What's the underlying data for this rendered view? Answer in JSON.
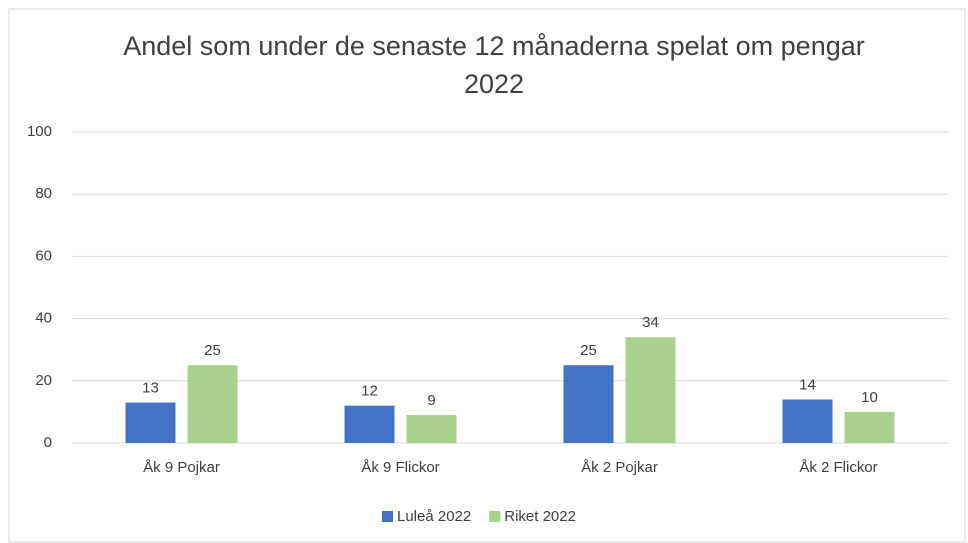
{
  "chart_data": {
    "type": "bar",
    "title": "Andel som under de senaste 12 månaderna spelat om pengar 2022",
    "categories": [
      "Åk 9 Pojkar",
      "Åk 9 Flickor",
      "Åk 2 Pojkar",
      "Åk 2 Flickor"
    ],
    "series": [
      {
        "name": "Luleå 2022",
        "color": "#4472c4",
        "values": [
          13,
          12,
          25,
          14
        ]
      },
      {
        "name": "Riket 2022",
        "color": "#a9d18e",
        "values": [
          25,
          9,
          34,
          10
        ]
      }
    ],
    "ylim": [
      0,
      100
    ],
    "yticks": [
      0,
      20,
      40,
      60,
      80,
      100
    ],
    "grid": true,
    "legend": "bottom"
  }
}
